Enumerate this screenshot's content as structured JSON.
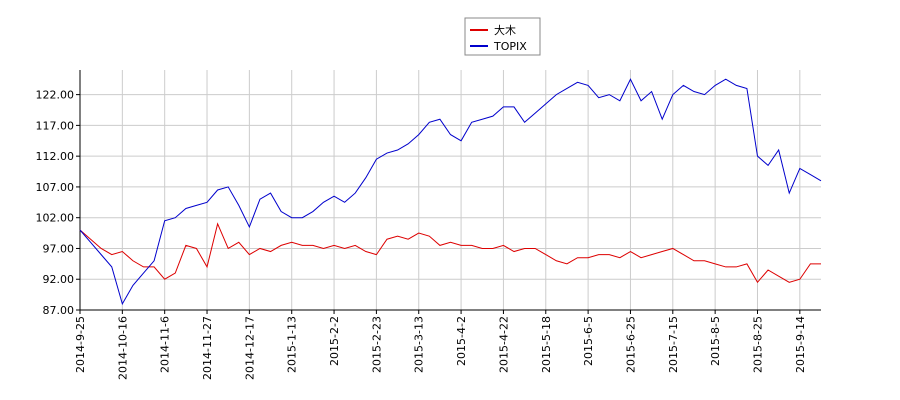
{
  "chart_data": {
    "type": "line",
    "categories": [
      "2014-9-25",
      null,
      null,
      null,
      "2014-10-16",
      null,
      null,
      null,
      "2014-11-6",
      null,
      null,
      null,
      "2014-11-27",
      null,
      null,
      null,
      "2014-12-17",
      null,
      null,
      null,
      "2015-1-13",
      null,
      null,
      null,
      "2015-2-2",
      null,
      null,
      null,
      "2015-2-23",
      null,
      null,
      null,
      "2015-3-13",
      null,
      null,
      null,
      "2015-4-2",
      null,
      null,
      null,
      "2015-4-22",
      null,
      null,
      null,
      "2015-5-18",
      null,
      null,
      null,
      "2015-6-5",
      null,
      null,
      null,
      "2015-6-25",
      null,
      null,
      null,
      "2015-7-15",
      null,
      null,
      null,
      "2015-8-5",
      null,
      null,
      null,
      "2015-8-25",
      null,
      null,
      null,
      "2015-9-14",
      null,
      null
    ],
    "series": [
      {
        "name": "大木",
        "color": "#dd0000",
        "values": [
          100,
          98.5,
          97,
          96,
          96.5,
          95,
          94,
          94,
          92,
          93,
          97.5,
          97,
          94,
          101,
          97,
          98,
          96,
          97,
          96.5,
          97.5,
          98,
          97.5,
          97.5,
          97,
          97.5,
          97,
          97.5,
          96.5,
          96,
          98.5,
          99,
          98.5,
          99.5,
          99,
          97.5,
          98,
          97.5,
          97.5,
          97,
          97,
          97.5,
          96.5,
          97,
          97,
          96,
          95,
          94.5,
          95.5,
          95.5,
          96,
          96,
          95.5,
          96.5,
          95.5,
          96,
          96.5,
          97,
          96,
          95,
          95,
          94.5,
          94,
          94,
          94.5,
          91.5,
          93.5,
          92.5,
          91.5,
          92,
          94.5,
          94.5
        ]
      },
      {
        "name": "TOPIX",
        "color": "#0000cc",
        "values": [
          100,
          98,
          96,
          94,
          88,
          91,
          93,
          95,
          101.5,
          102,
          103.5,
          104,
          104.5,
          106.5,
          107,
          104,
          100.5,
          105,
          106,
          103,
          102,
          102,
          103,
          104.5,
          105.5,
          104.5,
          106,
          108.5,
          111.5,
          112.5,
          113,
          114,
          115.5,
          117.5,
          118,
          115.5,
          114.5,
          117.5,
          118,
          118.5,
          120,
          120,
          117.5,
          119,
          120.5,
          122,
          123,
          124,
          123.5,
          121.5,
          122,
          121,
          124.5,
          121,
          122.5,
          118,
          122,
          123.5,
          122.5,
          122,
          123.5,
          124.5,
          123.5,
          123,
          112,
          110.5,
          113,
          106,
          110,
          109,
          108
        ]
      }
    ],
    "ylim": [
      87,
      126
    ],
    "yticks": [
      {
        "value": 87,
        "label": "87.00"
      },
      {
        "value": 92,
        "label": "92.00"
      },
      {
        "value": 97,
        "label": "97.00"
      },
      {
        "value": 102,
        "label": "102.00"
      },
      {
        "value": 107,
        "label": "107.00"
      },
      {
        "value": 112,
        "label": "112.00"
      },
      {
        "value": 117,
        "label": "117.00"
      },
      {
        "value": 122,
        "label": "122.00"
      }
    ],
    "grid": true
  }
}
